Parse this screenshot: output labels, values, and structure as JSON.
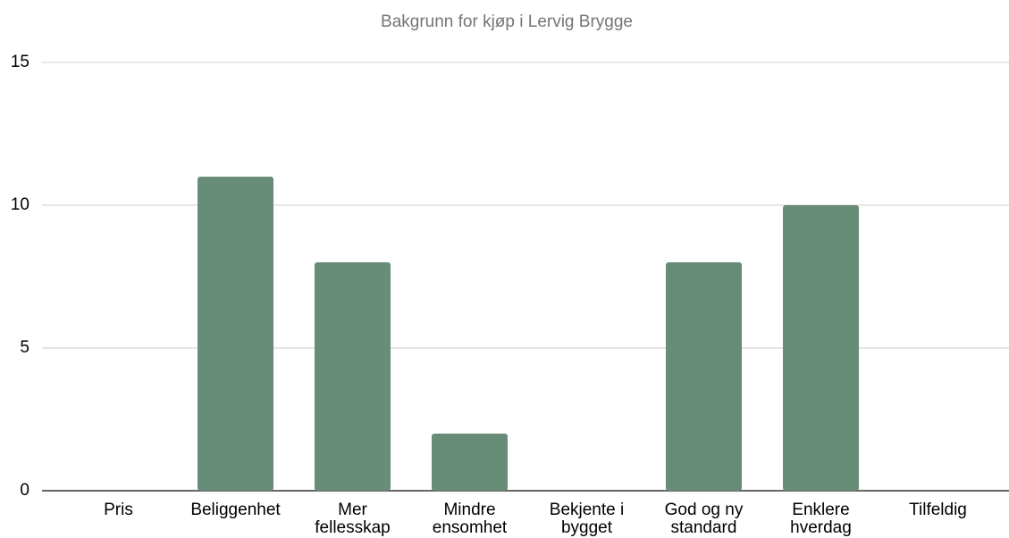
{
  "chart_data": {
    "type": "bar",
    "title": "Bakgrunn for kjøp i Lervig Brygge",
    "categories": [
      "Pris",
      "Beliggenhet",
      "Mer fellesskap",
      "Mindre ensomhet",
      "Bekjente i bygget",
      "God og ny standard",
      "Enklere hverdag",
      "Tilfeldig"
    ],
    "values": [
      0,
      11,
      8,
      2,
      0,
      8,
      10,
      0
    ],
    "color": "#678c77",
    "ylim": [
      0,
      15
    ],
    "yticks": [
      0,
      5,
      10,
      15
    ],
    "grid": true
  }
}
